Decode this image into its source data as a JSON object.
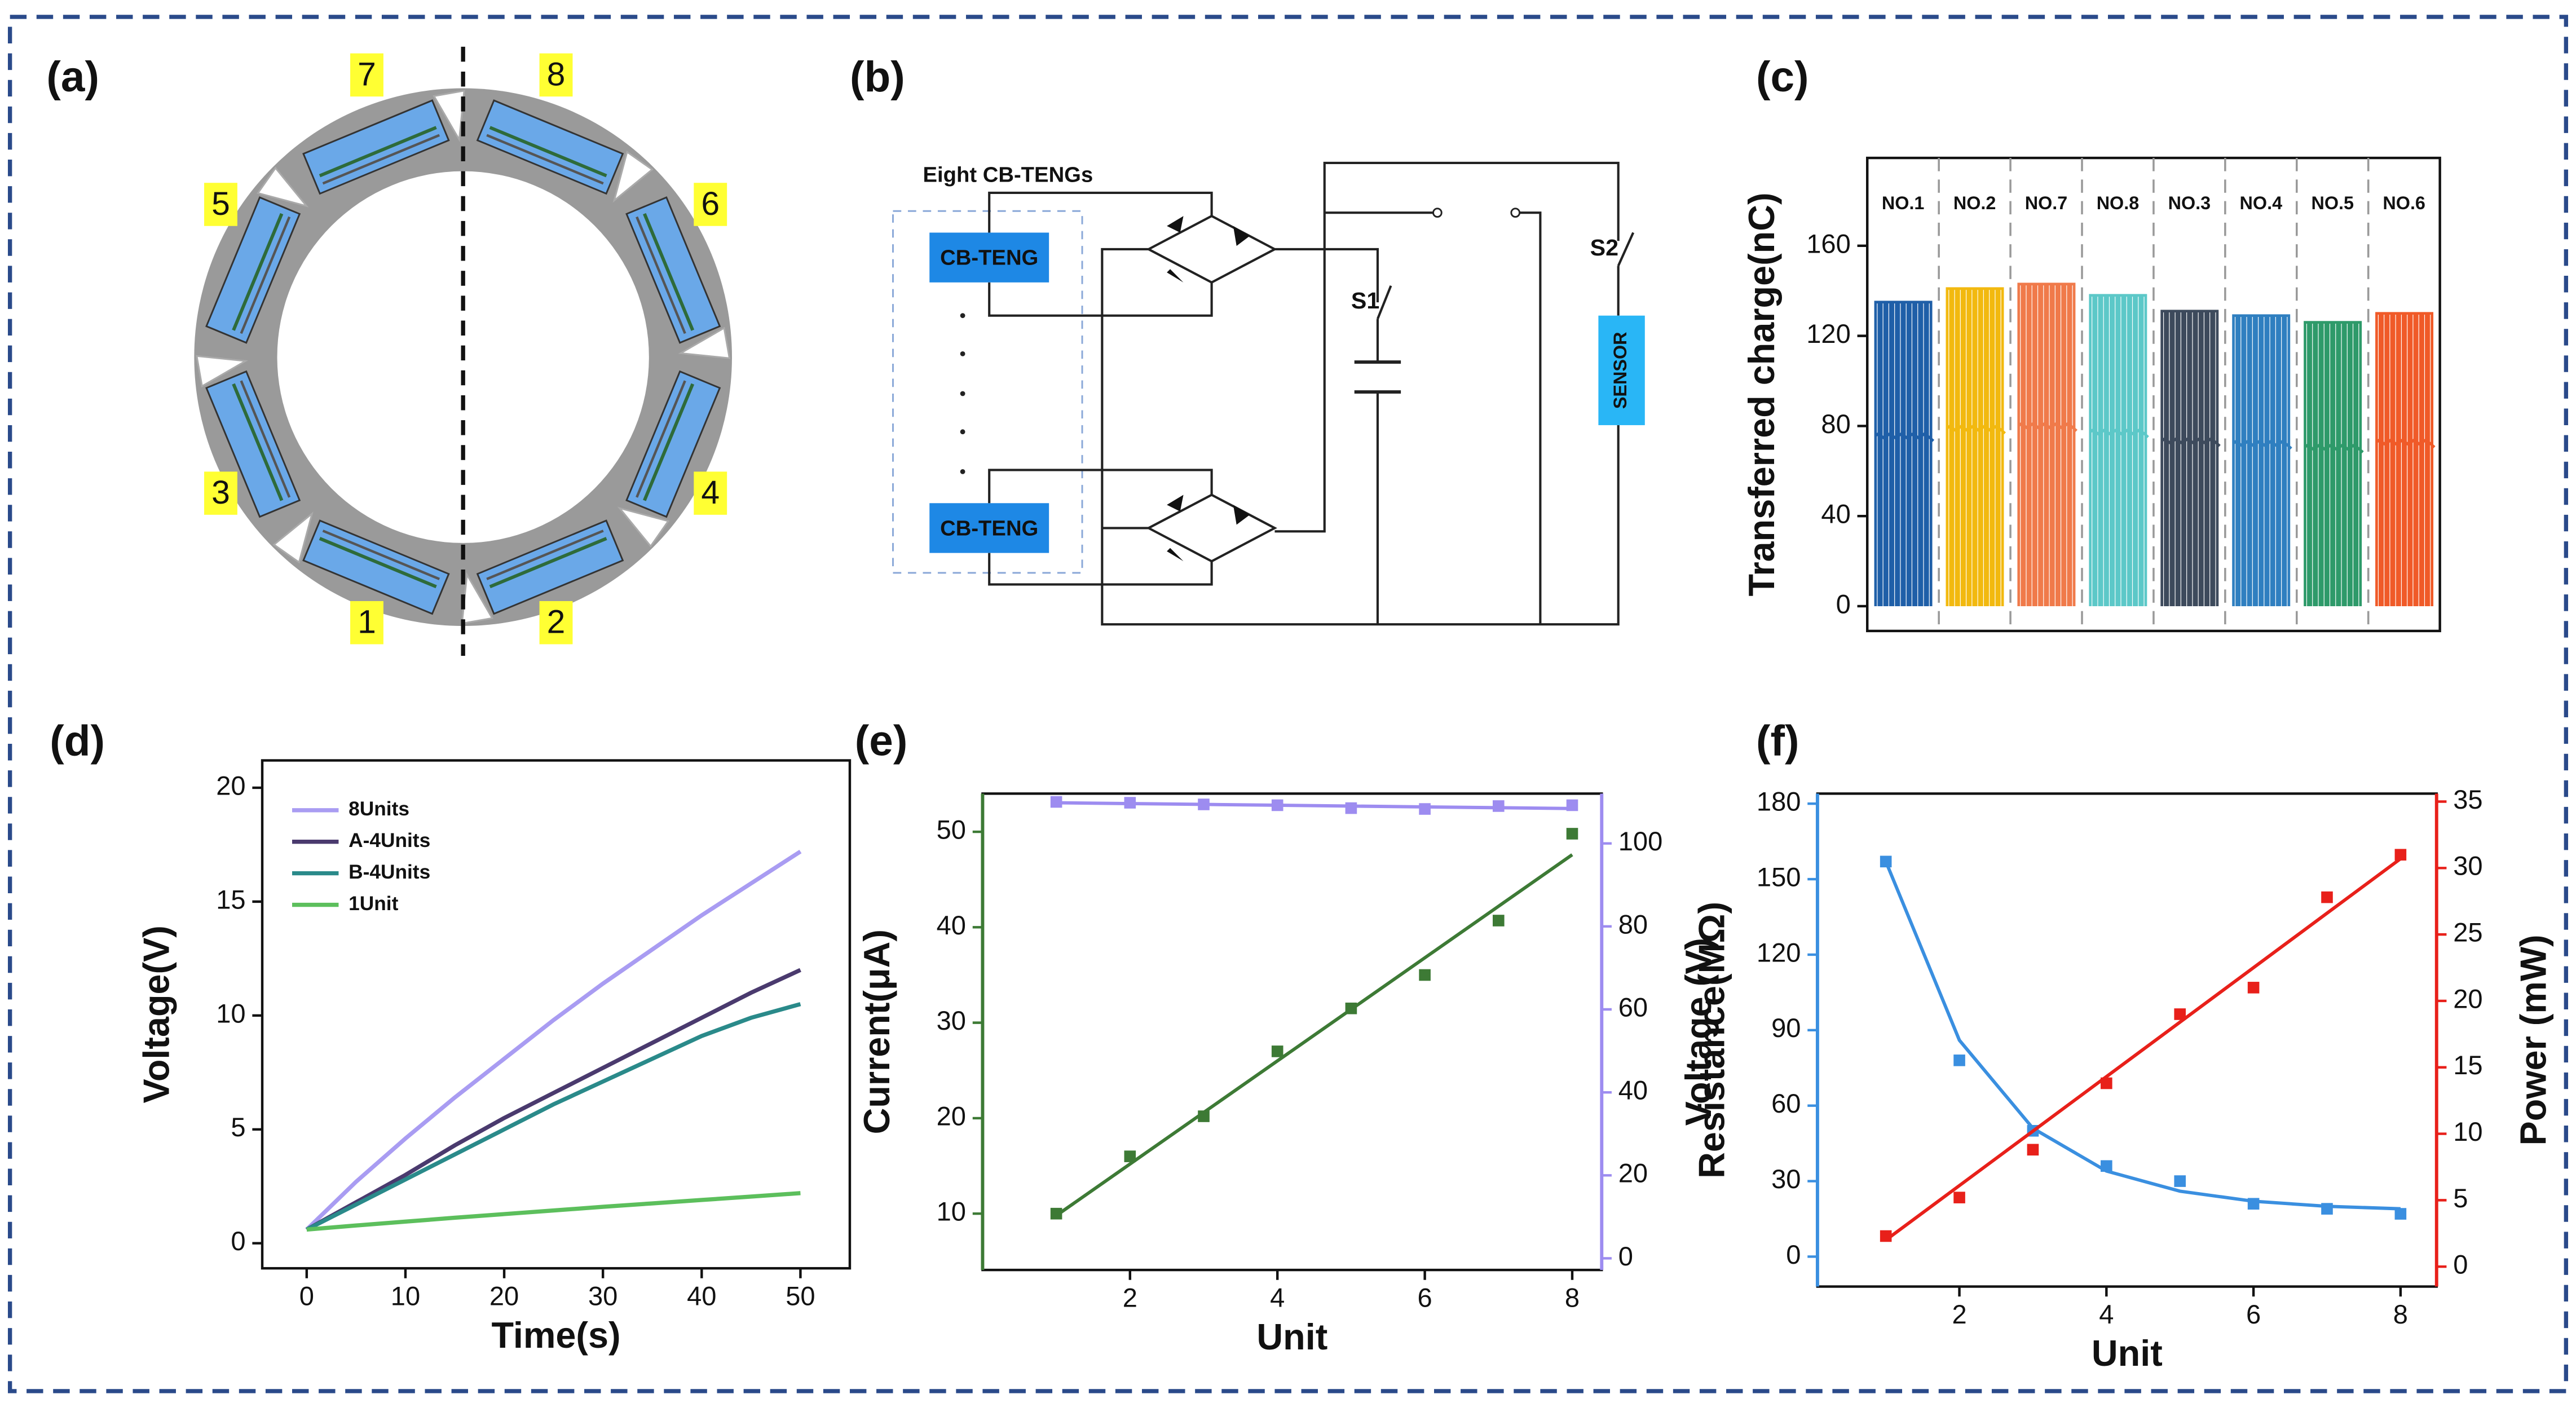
{
  "diagram_a": {
    "label": "(a)",
    "unit_numbers": [
      "7",
      "8",
      "5",
      "6",
      "3",
      "4",
      "1",
      "2"
    ]
  },
  "diagram_b": {
    "label": "(b)",
    "group_label": "Eight CB-TENGs",
    "teng_labels": [
      "CB-TENG",
      "CB-TENG"
    ],
    "switch_labels": [
      "S1",
      "S2"
    ],
    "sensor_label": "SENSOR"
  },
  "chart_data": [
    {
      "type": "waveform",
      "panel": "(c)",
      "ylabel": "Transferred charge(nC)",
      "categories": [
        "NO.1",
        "NO.2",
        "NO.7",
        "NO.8",
        "NO.3",
        "NO.4",
        "NO.5",
        "NO.6"
      ],
      "values": [
        135,
        141,
        143,
        138,
        131,
        129,
        126,
        130
      ],
      "colors": [
        "#1f5fa8",
        "#f2b90f",
        "#f07a4a",
        "#5cc8c8",
        "#3d4a5c",
        "#2f7fc0",
        "#2e9a6a",
        "#f05a28"
      ],
      "ylim": [
        -11,
        199
      ],
      "yticks": [
        0,
        40,
        80,
        120,
        160
      ]
    },
    {
      "type": "line",
      "panel": "(d)",
      "xlabel": "Time(s)",
      "ylabel": "Voltage(V)",
      "x": [
        0,
        5,
        10,
        15,
        20,
        25,
        30,
        35,
        40,
        45,
        50
      ],
      "series": [
        {
          "name": "8Units",
          "color": "#a99cf2",
          "values": [
            0.6,
            2.7,
            4.6,
            6.4,
            8.1,
            9.8,
            11.4,
            12.9,
            14.4,
            15.8,
            17.2
          ]
        },
        {
          "name": "A-4Units",
          "color": "#4a3a6e",
          "values": [
            0.6,
            1.8,
            3.0,
            4.3,
            5.5,
            6.6,
            7.7,
            8.8,
            9.9,
            11.0,
            12.0
          ]
        },
        {
          "name": "B-4Units",
          "color": "#2a8a8a",
          "values": [
            0.6,
            1.7,
            2.8,
            3.9,
            5.0,
            6.1,
            7.1,
            8.1,
            9.1,
            9.9,
            10.5
          ]
        },
        {
          "name": "1Unit",
          "color": "#5cbf5c",
          "values": [
            0.6,
            0.78,
            0.95,
            1.12,
            1.28,
            1.44,
            1.6,
            1.75,
            1.9,
            2.05,
            2.2
          ]
        }
      ],
      "xlim": [
        -4.5,
        55
      ],
      "xticks": [
        0,
        10,
        20,
        30,
        40,
        50
      ],
      "ylim": [
        -1.1,
        21.2
      ],
      "yticks": [
        0,
        5,
        10,
        15,
        20
      ],
      "legend": "upper left"
    },
    {
      "type": "dual",
      "panel": "(e)",
      "xlabel": "Unit",
      "ylabel": "Current(μA)",
      "y2label": "Voltage (V)",
      "ycolor": "#3d7a35",
      "y2color": "#9d8cf0",
      "x": [
        1,
        2,
        3,
        4,
        5,
        6,
        7,
        8
      ],
      "series": [
        {
          "color": "#3d7a35",
          "mark": "square",
          "values": [
            10,
            16,
            20.2,
            27,
            31.5,
            35,
            40.7,
            49.8
          ]
        },
        {
          "color": "#3d7a35",
          "mark": "line",
          "values": [
            9.8,
            15.2,
            20.6,
            26.0,
            31.4,
            36.8,
            42.2,
            47.6
          ]
        },
        {
          "color": "#9d8cf0",
          "mark": "square",
          "axis": "y2",
          "values": [
            110,
            109.8,
            109.4,
            109.2,
            108.5,
            108.3,
            109,
            109.2
          ]
        },
        {
          "color": "#9d8cf0",
          "mark": "line",
          "axis": "y2",
          "values": [
            109.8,
            109.6,
            109.4,
            109.2,
            109.0,
            108.8,
            108.6,
            108.4
          ]
        }
      ],
      "xlim": [
        0,
        8.4
      ],
      "xticks": [
        2,
        4,
        6,
        8
      ],
      "ylim": [
        4.1,
        54
      ],
      "yticks": [
        10,
        20,
        30,
        40,
        50
      ],
      "y2lim": [
        -2.8,
        112
      ],
      "y2ticks": [
        0,
        20,
        40,
        60,
        80,
        100
      ]
    },
    {
      "type": "dual",
      "panel": "(f)",
      "xlabel": "Unit",
      "ylabel": "Resistance(MΩ)",
      "y2label": "Power (mW)",
      "ycolor": "#3a8fe0",
      "y2color": "#e8201a",
      "x": [
        1,
        2,
        3,
        4,
        5,
        6,
        7,
        8
      ],
      "series": [
        {
          "color": "#3a8fe0",
          "mark": "square",
          "values": [
            157,
            78,
            50,
            36,
            30,
            21,
            19,
            17
          ]
        },
        {
          "color": "#3a8fe0",
          "mark": "line",
          "values": [
            157,
            86,
            51,
            34,
            26,
            22,
            20,
            19
          ]
        },
        {
          "color": "#e8201a",
          "mark": "square",
          "axis": "y2",
          "values": [
            2.3,
            5.2,
            8.8,
            13.8,
            19,
            21,
            27.8,
            31
          ]
        },
        {
          "color": "#e8201a",
          "mark": "line",
          "axis": "y2",
          "values": [
            2,
            6.1,
            10.2,
            14.3,
            18.4,
            22.5,
            26.6,
            30.7
          ]
        }
      ],
      "xlim": [
        0.07,
        8.49
      ],
      "xticks": [
        2,
        4,
        6,
        8
      ],
      "ylim": [
        -11.9,
        184
      ],
      "yticks": [
        0,
        30,
        60,
        90,
        120,
        150,
        180
      ],
      "y2lim": [
        -1.5,
        35.6
      ],
      "y2ticks": [
        0,
        5,
        10,
        15,
        20,
        25,
        30,
        35
      ]
    }
  ]
}
